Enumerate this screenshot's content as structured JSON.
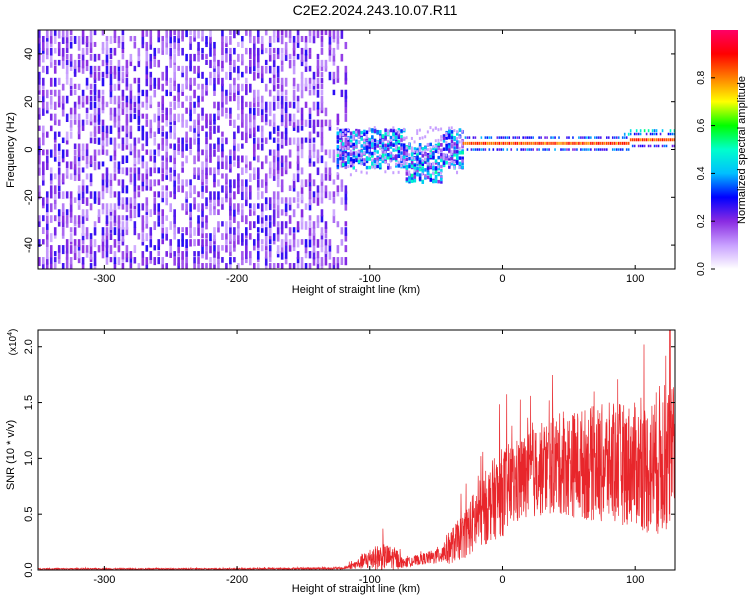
{
  "title": "C2E2.2024.243.10.07.R11",
  "chart_data": [
    {
      "type": "heatmap",
      "title": "C2E2.2024.243.10.07.R11",
      "xlabel": "Height of straight line (km)",
      "ylabel": "Frequency (Hz)",
      "xlim": [
        -350,
        130
      ],
      "ylim": [
        -50,
        50
      ],
      "xticks": [
        -300,
        -200,
        -100,
        0,
        100
      ],
      "xtick_labels": [
        "-300",
        "-200",
        "-100",
        "0",
        "100"
      ],
      "yticks": [
        -40,
        -20,
        0,
        20,
        40
      ],
      "ytick_labels": [
        "-40",
        "-20",
        "0",
        "20",
        "40"
      ],
      "colorbar": {
        "label": "Normalized spectral amplitude",
        "range": [
          0.0,
          1.0
        ],
        "ticks": [
          0.0,
          0.2,
          0.4,
          0.6,
          0.8
        ],
        "tick_labels": [
          "0.0",
          "0.2",
          "0.4",
          "0.6",
          "0.8"
        ],
        "colors": [
          "#ffffff",
          "#c8a0ff",
          "#8a2be2",
          "#0000ff",
          "#00bfff",
          "#00ffcc",
          "#00ff00",
          "#ffff00",
          "#ff8000",
          "#ff0000",
          "#ff0066"
        ]
      },
      "regions": [
        {
          "name": "broadband noise",
          "x_range": [
            -350,
            -125
          ],
          "freq_range": [
            -50,
            50
          ],
          "amplitude": 0.15
        },
        {
          "name": "emerging signal",
          "x_range": [
            -125,
            -30
          ],
          "freq_center": 0,
          "freq_halfwidth": 8,
          "amplitude": 0.35
        },
        {
          "name": "tonal line",
          "x_range": [
            -30,
            130
          ],
          "freq_center": 2,
          "freq_halfwidth": 2,
          "amplitude": 0.9
        }
      ]
    },
    {
      "type": "line",
      "xlabel": "Height of straight line (km)",
      "ylabel": "SNR (10 * v/v)",
      "multiplier": "(x10",
      "multiplier_exp": "4",
      "multiplier_close": ")",
      "xlim": [
        -350,
        130
      ],
      "ylim": [
        0,
        2.15
      ],
      "xticks": [
        -300,
        -200,
        -100,
        0,
        100
      ],
      "xtick_labels": [
        "-300",
        "-200",
        "-100",
        "0",
        "100"
      ],
      "yticks": [
        0.0,
        0.5,
        1.0,
        1.5,
        2.0
      ],
      "ytick_labels": [
        "0.0",
        "0.5",
        "1.0",
        "1.5",
        "2.0"
      ],
      "color": "#e8262b",
      "envelope": {
        "x": [
          -350,
          -200,
          -120,
          -110,
          -100,
          -90,
          -80,
          -75,
          -60,
          -50,
          -40,
          -30,
          -20,
          -10,
          0,
          20,
          40,
          60,
          80,
          100,
          110,
          120,
          130
        ],
        "mean": [
          0.01,
          0.01,
          0.015,
          0.05,
          0.1,
          0.12,
          0.1,
          0.06,
          0.1,
          0.12,
          0.2,
          0.3,
          0.45,
          0.6,
          0.7,
          0.85,
          0.95,
          0.95,
          0.95,
          0.95,
          0.9,
          1.0,
          1.0
        ],
        "spread": [
          0.005,
          0.005,
          0.01,
          0.04,
          0.1,
          0.12,
          0.1,
          0.04,
          0.05,
          0.07,
          0.15,
          0.2,
          0.3,
          0.35,
          0.4,
          0.4,
          0.45,
          0.5,
          0.55,
          0.55,
          0.6,
          0.7,
          0.65
        ]
      }
    }
  ]
}
